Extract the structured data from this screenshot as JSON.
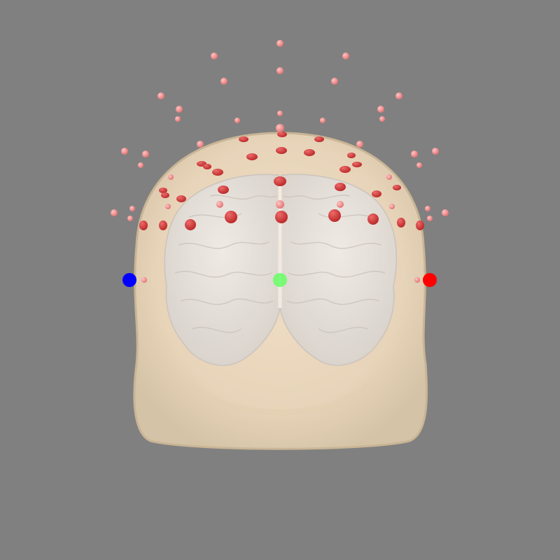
{
  "scene": {
    "background_color": "#808080",
    "head_color": "#f3dcc0",
    "brain_color": "#e6e2df",
    "sensor_color": "#d93a3a",
    "electrode_color": "#f08c8c",
    "fiducials": [
      {
        "name": "LPA",
        "color": "#0000ff"
      },
      {
        "name": "Nasion",
        "color": "#66ff66"
      },
      {
        "name": "RPA",
        "color": "#ff0000"
      }
    ],
    "surfaces": [
      "head",
      "brain"
    ]
  }
}
